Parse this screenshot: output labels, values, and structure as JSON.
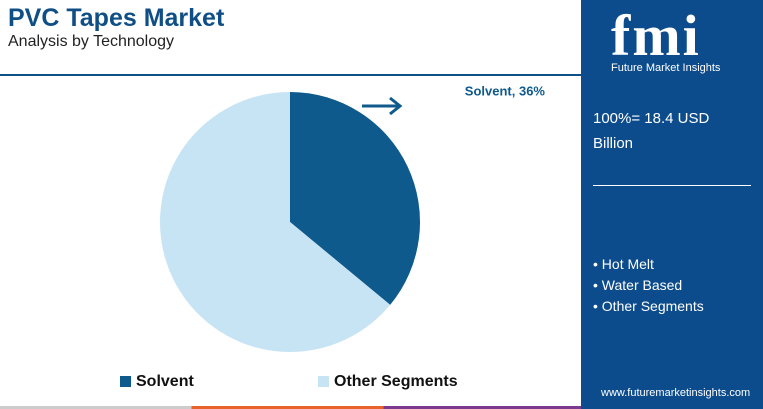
{
  "header": {
    "title": "PVC Tapes Market",
    "subtitle": "Analysis by Technology"
  },
  "chart_data": {
    "type": "pie",
    "categories": [
      "Solvent",
      "Other Segments"
    ],
    "values": [
      36,
      64
    ],
    "value_labels": [
      "Solvent, 36%",
      null
    ],
    "colors": [
      "#0f5a8c",
      "#c7e4f4"
    ],
    "legend": "bottom"
  },
  "sidebar": {
    "logo": "fmi",
    "brand": "Future Market Insights",
    "total": "100%= 18.4 USD Billion",
    "segments": [
      "Hot Melt",
      "Water Based",
      "Other Segments"
    ],
    "url": "www.futuremarketinsights.com"
  }
}
